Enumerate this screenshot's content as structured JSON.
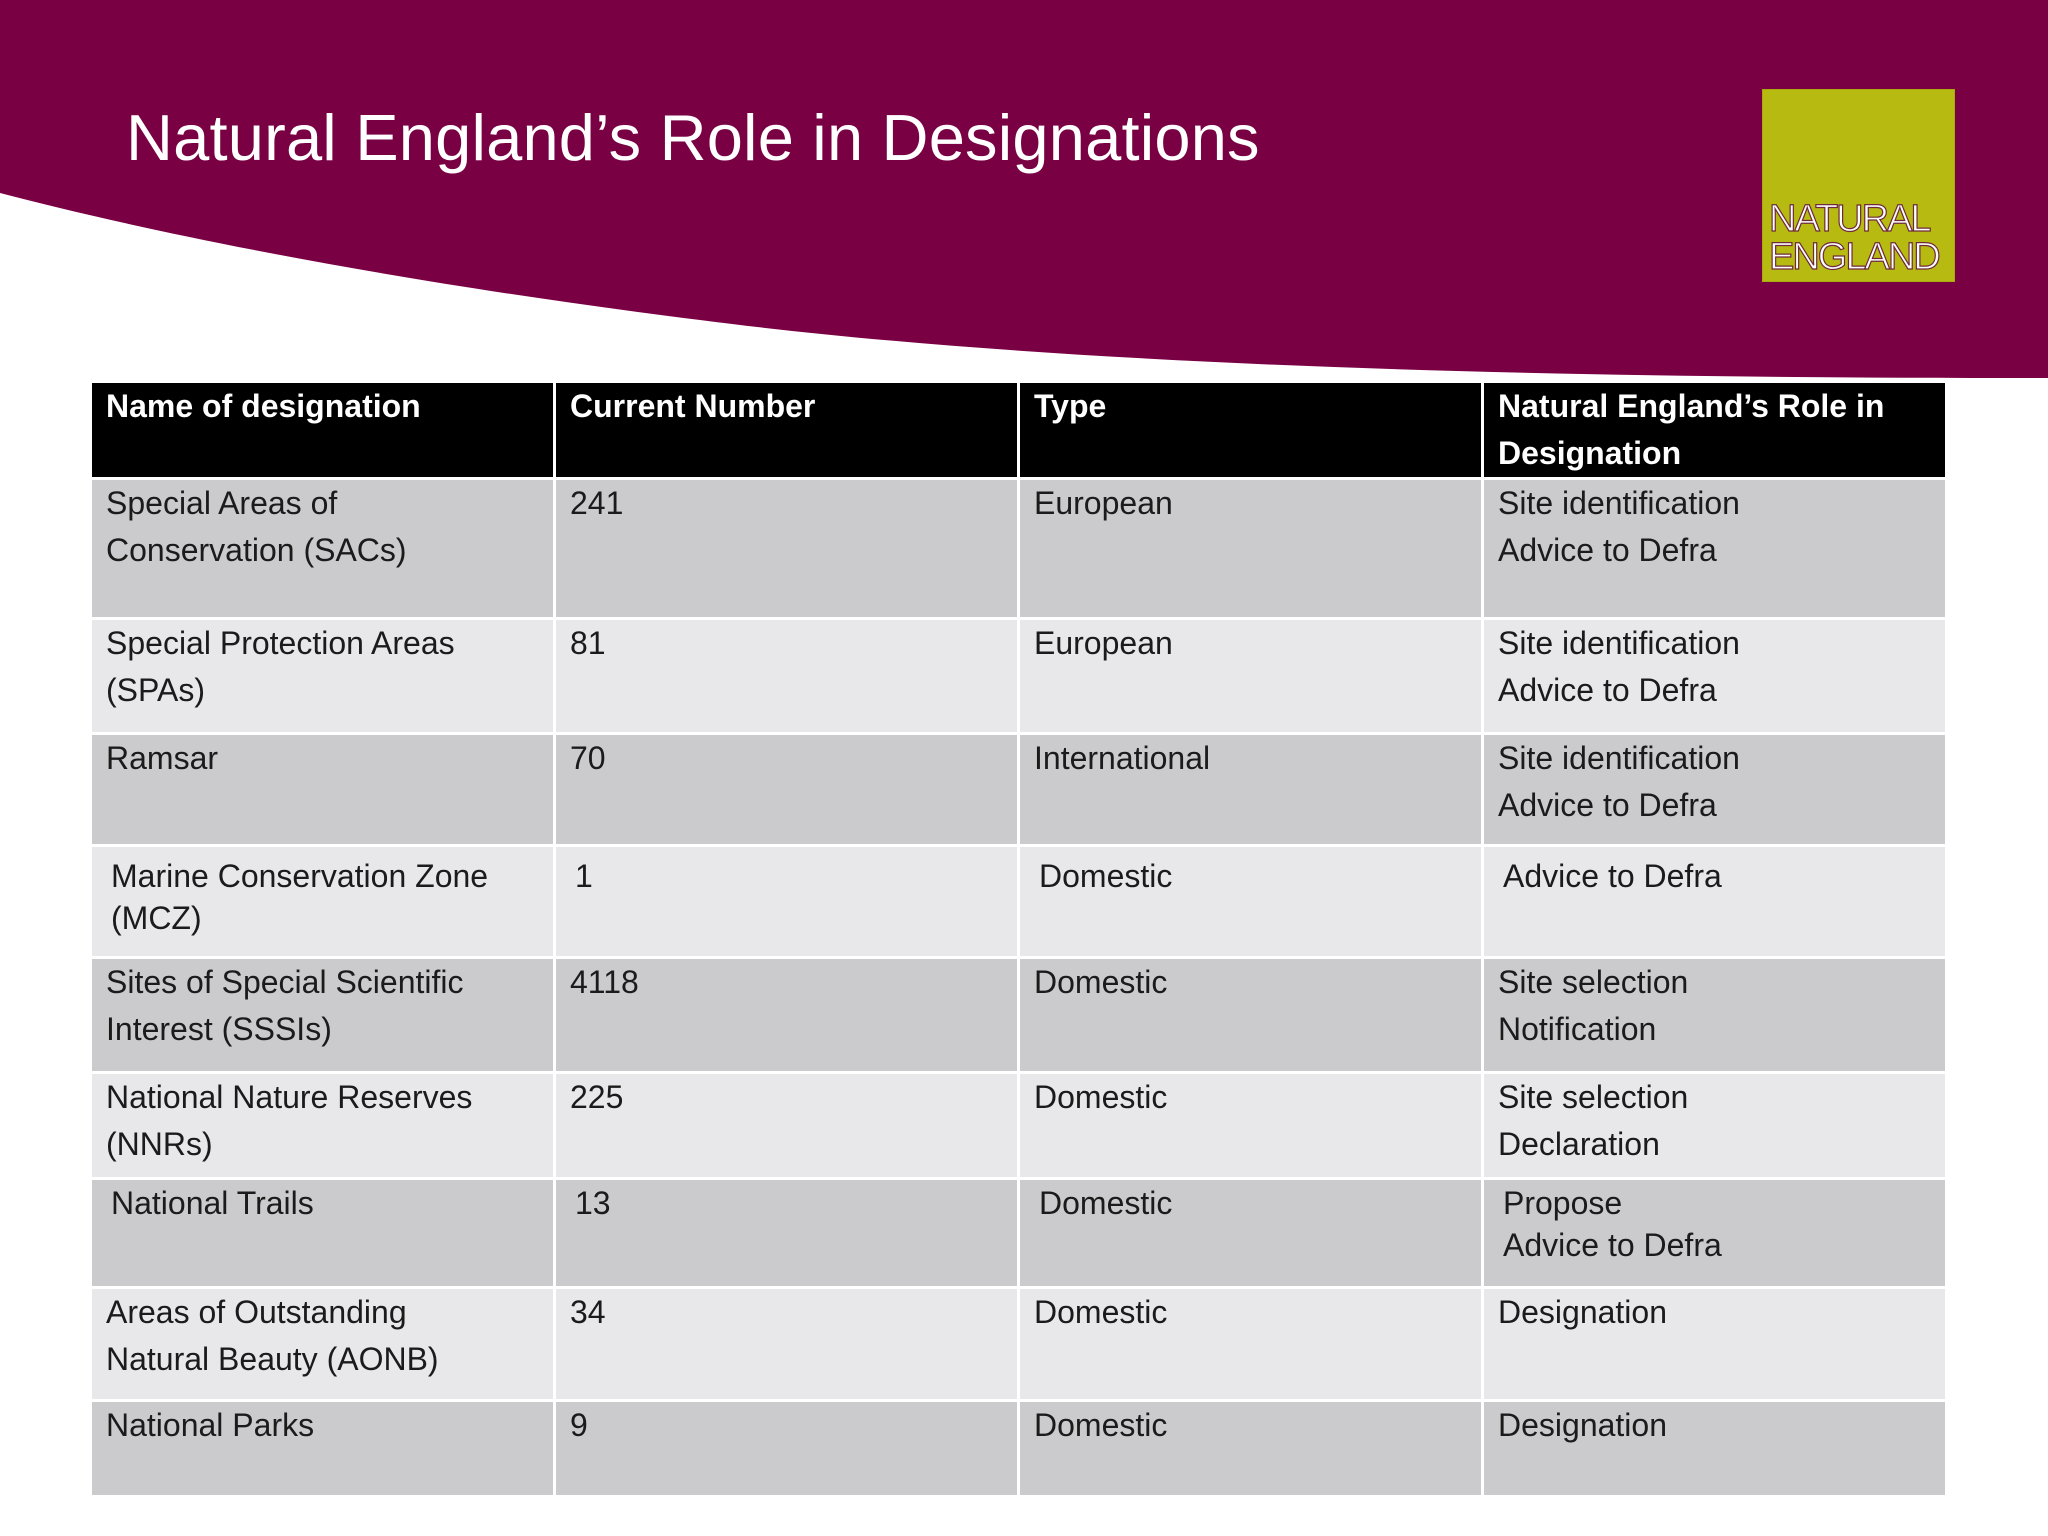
{
  "slide": {
    "title": "Natural England’s Role in Designations",
    "logo_text": "NATURAL\nENGLAND",
    "colors": {
      "banner": "#7a0044",
      "logo_background": "#b7ba10",
      "header_background": "#000000",
      "row_dark": "#cbcacc",
      "row_light": "#e8e7ea"
    }
  },
  "table": {
    "headers": [
      "Name of designation",
      "Current Number",
      "Type",
      "Natural England’s Role in Designation"
    ],
    "rows": [
      {
        "name": "Special Areas of\nConservation (SACs)",
        "number": "241",
        "type": "European",
        "role": "Site identification\nAdvice to Defra"
      },
      {
        "name": "Special Protection Areas\n(SPAs)",
        "number": "81",
        "type": "European",
        "role": "Site identification\nAdvice to Defra"
      },
      {
        "name": "Ramsar",
        "number": "70",
        "type": "International",
        "role": "Site identification\nAdvice to Defra"
      },
      {
        "name": "Marine Conservation Zone\n(MCZ)",
        "number": "1",
        "type": "Domestic",
        "role": "Advice to Defra"
      },
      {
        "name": "Sites of Special Scientific\nInterest (SSSIs)",
        "number": "4118",
        "type": "Domestic",
        "role": "Site selection\nNotification"
      },
      {
        "name": "National Nature Reserves\n(NNRs)",
        "number": "225",
        "type": "Domestic",
        "role": "Site selection\nDeclaration"
      },
      {
        "name": "National Trails",
        "number": "13",
        "type": "Domestic",
        "role": "Propose\nAdvice to Defra"
      },
      {
        "name": "Areas of Outstanding\nNatural Beauty (AONB)",
        "number": "34",
        "type": "Domestic",
        "role": "Designation"
      },
      {
        "name": "National Parks",
        "number": "9",
        "type": "Domestic",
        "role": "Designation"
      }
    ]
  }
}
